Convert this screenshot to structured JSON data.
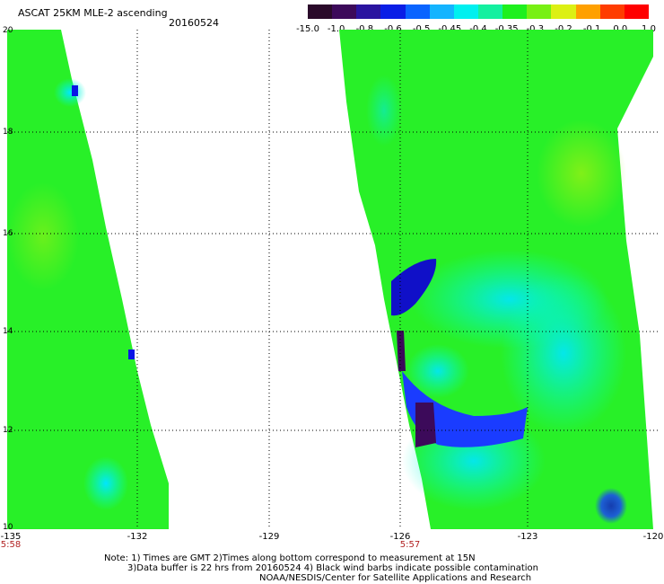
{
  "header": {
    "title": "ASCAT 25KM MLE-2 ascending",
    "date": "20160524"
  },
  "colorbar": {
    "labels": [
      "-15.0",
      "-1.0",
      "-0.8",
      "-0.6",
      "-0.5",
      "-0.45",
      "-0.4",
      "-0.35",
      "-0.3",
      "-0.2",
      "-0.1",
      "0.0",
      "1.0"
    ],
    "colors": [
      "#2a0a2a",
      "#3c0a5a",
      "#2a14a0",
      "#0a1ee6",
      "#0a64ff",
      "#14b4ff",
      "#00f0f0",
      "#14f0a0",
      "#1ef01e",
      "#78f014",
      "#dcf014",
      "#ffa000",
      "#ff3c00",
      "#ff0000"
    ]
  },
  "axes": {
    "y_ticks": [
      "20",
      "18",
      "16",
      "14",
      "12",
      "10"
    ],
    "x_ticks": [
      "-135",
      "-132",
      "-129",
      "-126",
      "-123",
      "-120"
    ],
    "times": [
      "5:58",
      "5:57"
    ]
  },
  "notes": {
    "line1": "Note: 1) Times are GMT 2)Times along bottom correspond to measurement at 15N",
    "line2": "3)Data buffer is 22 hrs from 20160524 4) Black wind barbs indicate possible contamination",
    "line3": "NOAA/NESDIS/Center for Satellite Applications and Research"
  }
}
